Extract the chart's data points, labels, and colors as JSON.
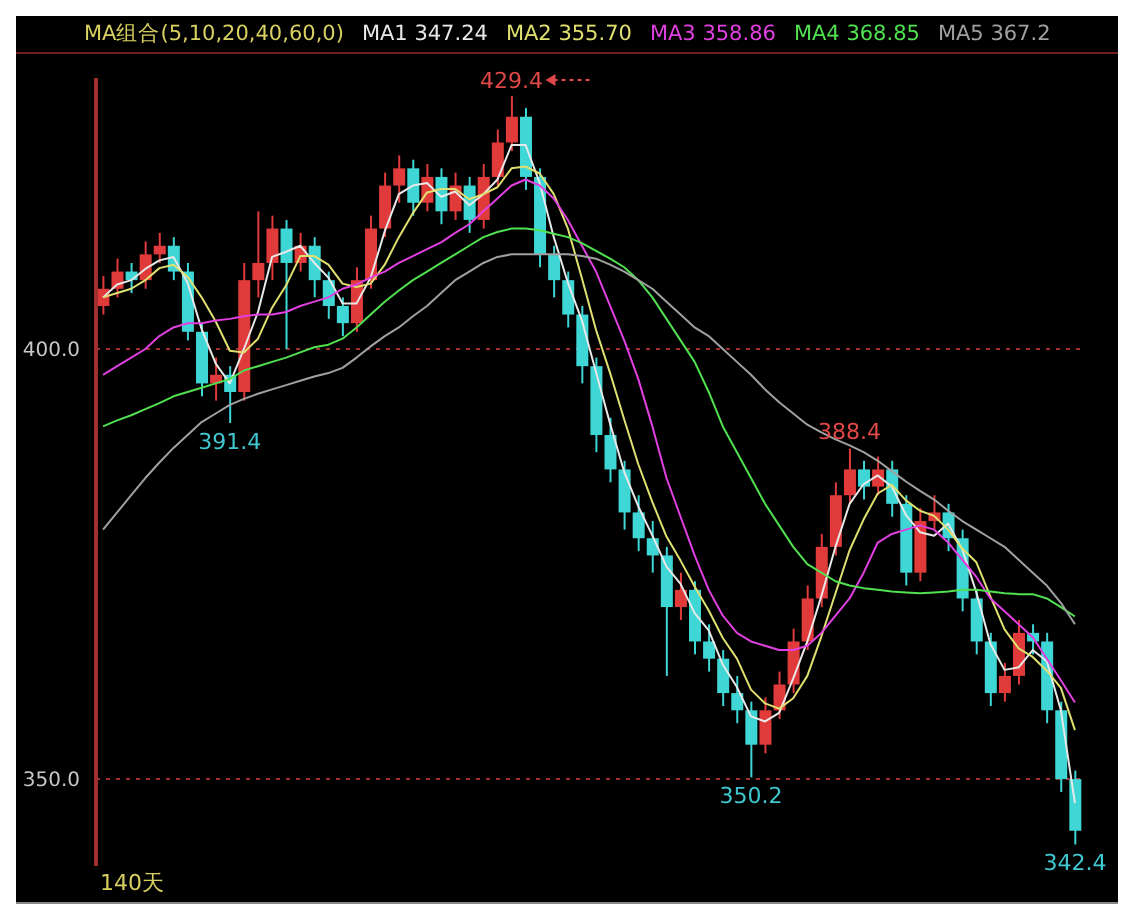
{
  "chart_data": {
    "type": "candlestick",
    "legend_title": "MA组合(5,10,20,40,60,0)",
    "legend": "top",
    "marker": "none",
    "grid": "y",
    "tick_labels": "y",
    "categories": [
      null,
      null,
      null,
      null,
      null,
      null,
      null,
      null,
      null,
      null,
      null,
      null,
      null,
      null,
      null,
      null,
      null,
      null,
      null,
      null,
      null,
      null,
      null,
      null,
      null,
      null,
      null,
      null,
      null,
      null,
      null,
      null,
      null,
      null,
      null,
      null,
      null,
      null,
      null,
      null,
      null,
      null,
      null,
      null,
      null,
      null,
      null,
      null,
      null,
      null,
      null,
      null,
      null,
      null,
      null,
      null,
      null,
      null,
      null,
      null,
      null,
      null,
      null,
      null,
      null,
      null,
      null,
      null,
      null,
      null
    ],
    "ohlc": [
      [
        405,
        408.5,
        404,
        407
      ],
      [
        407,
        410.5,
        406,
        409
      ],
      [
        409,
        410,
        406.5,
        408
      ],
      [
        408,
        412.5,
        407,
        411
      ],
      [
        411,
        413.5,
        410,
        412
      ],
      [
        412,
        413,
        408,
        409
      ],
      [
        409,
        410,
        401,
        402
      ],
      [
        402,
        403,
        394.5,
        396
      ],
      [
        396,
        399,
        394,
        397
      ],
      [
        397,
        398,
        391.4,
        395
      ],
      [
        395,
        410,
        394,
        408
      ],
      [
        408,
        416,
        406,
        410
      ],
      [
        410,
        415.5,
        408,
        414
      ],
      [
        414,
        415,
        400,
        410
      ],
      [
        410,
        413.5,
        409,
        412
      ],
      [
        412,
        413,
        406,
        408
      ],
      [
        408,
        409,
        403.5,
        405
      ],
      [
        405,
        406,
        401.5,
        403
      ],
      [
        403,
        409.5,
        402,
        408
      ],
      [
        408,
        415.5,
        407,
        414
      ],
      [
        414,
        420.5,
        413,
        419
      ],
      [
        419,
        422.5,
        417,
        421
      ],
      [
        421,
        422,
        415.5,
        417
      ],
      [
        417,
        421.5,
        416,
        420
      ],
      [
        420,
        421,
        414.5,
        416
      ],
      [
        416,
        420.5,
        415,
        419
      ],
      [
        419,
        420,
        413.5,
        415
      ],
      [
        415,
        421.5,
        414,
        420
      ],
      [
        420,
        425.5,
        419,
        424
      ],
      [
        424,
        429.4,
        423,
        427
      ],
      [
        427,
        428,
        418.5,
        420
      ],
      [
        420,
        421,
        409.5,
        411
      ],
      [
        411,
        412,
        406,
        408
      ],
      [
        408,
        409,
        402.5,
        404
      ],
      [
        404,
        405,
        396,
        398
      ],
      [
        398,
        399,
        388,
        390
      ],
      [
        390,
        392,
        384.5,
        386
      ],
      [
        386,
        387,
        379,
        381
      ],
      [
        381,
        383,
        376.5,
        378
      ],
      [
        378,
        380,
        374,
        376
      ],
      [
        376,
        377,
        362,
        370
      ],
      [
        370,
        374,
        368.5,
        372
      ],
      [
        372,
        373,
        364.5,
        366
      ],
      [
        366,
        368,
        362.5,
        364
      ],
      [
        364,
        365,
        358.5,
        360
      ],
      [
        360,
        362,
        356.5,
        358
      ],
      [
        358,
        359,
        350.2,
        354
      ],
      [
        354,
        359.5,
        353,
        358
      ],
      [
        358,
        362.5,
        357,
        361
      ],
      [
        361,
        367.5,
        360,
        366
      ],
      [
        366,
        372.5,
        365,
        371
      ],
      [
        371,
        378.5,
        370,
        377
      ],
      [
        377,
        384.5,
        376,
        383
      ],
      [
        383,
        388.4,
        382,
        386
      ],
      [
        386,
        387,
        382.5,
        384
      ],
      [
        384,
        387.5,
        383,
        386
      ],
      [
        386,
        387,
        380.5,
        382
      ],
      [
        382,
        383,
        372.5,
        374
      ],
      [
        374,
        381.5,
        373,
        380
      ],
      [
        380,
        383,
        379,
        381
      ],
      [
        381,
        382,
        376.5,
        378
      ],
      [
        378,
        379,
        369.5,
        371
      ],
      [
        371,
        372,
        364.5,
        366
      ],
      [
        366,
        367,
        358.5,
        360
      ],
      [
        360,
        363.5,
        359,
        362
      ],
      [
        362,
        368.5,
        361,
        367
      ],
      [
        367,
        368,
        364.5,
        366
      ],
      [
        366,
        367,
        356.5,
        358
      ],
      [
        358,
        359,
        348.5,
        350
      ],
      [
        350,
        351,
        342.4,
        344
      ]
    ],
    "colors": [
      "#e03a3a",
      "#e03a3a",
      "#3fd6d6",
      "#e03a3a",
      "#e03a3a",
      "#3fd6d6",
      "#3fd6d6",
      "#3fd6d6",
      "#e03a3a",
      "#3fd6d6",
      "#e03a3a",
      "#e03a3a",
      "#e03a3a",
      "#3fd6d6",
      "#e03a3a",
      "#3fd6d6",
      "#3fd6d6",
      "#3fd6d6",
      "#e03a3a",
      "#e03a3a",
      "#e03a3a",
      "#e03a3a",
      "#3fd6d6",
      "#e03a3a",
      "#3fd6d6",
      "#e03a3a",
      "#3fd6d6",
      "#e03a3a",
      "#e03a3a",
      "#e03a3a",
      "#3fd6d6",
      "#3fd6d6",
      "#3fd6d6",
      "#3fd6d6",
      "#3fd6d6",
      "#3fd6d6",
      "#3fd6d6",
      "#3fd6d6",
      "#3fd6d6",
      "#3fd6d6",
      "#3fd6d6",
      "#e03a3a",
      "#3fd6d6",
      "#3fd6d6",
      "#3fd6d6",
      "#3fd6d6",
      "#3fd6d6",
      "#e03a3a",
      "#e03a3a",
      "#e03a3a",
      "#e03a3a",
      "#e03a3a",
      "#e03a3a",
      "#e03a3a",
      "#3fd6d6",
      "#e03a3a",
      "#3fd6d6",
      "#3fd6d6",
      "#e03a3a",
      "#e03a3a",
      "#3fd6d6",
      "#3fd6d6",
      "#3fd6d6",
      "#3fd6d6",
      "#e03a3a",
      "#e03a3a",
      "#3fd6d6",
      "#3fd6d6",
      "#3fd6d6",
      "#3fd6d6"
    ],
    "series": [
      {
        "type": "line",
        "name": "MA1 347.24",
        "color": "#e8e8e8",
        "values": [
          406,
          407.5,
          408,
          409.3,
          410.3,
          410.7,
          407.7,
          402.3,
          398.3,
          396,
          400,
          404.3,
          410.7,
          411.3,
          412,
          410,
          408.3,
          405.3,
          405.3,
          408.3,
          413.7,
          418,
          419,
          419.3,
          417.7,
          418.3,
          416.7,
          418,
          419.7,
          423.7,
          423.7,
          419.3,
          413,
          407.7,
          403.3,
          397.3,
          391.3,
          385.7,
          381.7,
          378.3,
          374.7,
          372.7,
          369.3,
          367.3,
          363.3,
          360.7,
          357.3,
          356.7,
          357.7,
          361.7,
          366,
          371.3,
          377,
          382,
          384.3,
          385.3,
          384,
          380.7,
          378.7,
          378.3,
          379.7,
          376.7,
          371.7,
          365.7,
          362.7,
          363,
          365,
          363.7,
          358,
          347.2
        ]
      },
      {
        "type": "line",
        "name": "MA2 355.70",
        "color": "#e0e070",
        "values": [
          406,
          406.5,
          407,
          408,
          409.4,
          409.8,
          408.4,
          406,
          403.2,
          399.8,
          399.6,
          401.2,
          404.8,
          407.4,
          410.8,
          410.8,
          409.8,
          407.6,
          407.2,
          407.6,
          409.8,
          413,
          415.8,
          418.2,
          418.6,
          418.6,
          417.4,
          418,
          418.8,
          421,
          421.2,
          420.4,
          418,
          414,
          408.2,
          402.2,
          397.2,
          391.8,
          386.6,
          382.2,
          378.2,
          375.4,
          372.4,
          369.6,
          366.4,
          364,
          360.4,
          358.8,
          358.2,
          359.4,
          362,
          366.6,
          371.6,
          376.6,
          380.2,
          383.2,
          384.2,
          382.4,
          381.2,
          380.6,
          379,
          376.8,
          375.2,
          371.2,
          367.4,
          365.2,
          364.2,
          362.6,
          360.6,
          355.7
        ]
      },
      {
        "type": "line",
        "name": "MA3 358.86",
        "color": "#e040e0",
        "values": [
          397,
          398,
          399,
          400,
          401.5,
          402.5,
          403,
          403,
          403.3,
          403.5,
          403.8,
          404,
          404,
          404.3,
          405,
          405.5,
          406,
          407,
          407.5,
          408.3,
          409,
          410,
          410.8,
          411.6,
          412.4,
          413.5,
          414.5,
          416,
          417.5,
          419,
          419.7,
          419,
          417.5,
          415,
          412,
          409,
          405,
          401,
          396.5,
          391,
          385,
          380.5,
          376,
          372,
          369,
          367,
          366,
          365.5,
          365,
          365,
          365.5,
          367,
          369,
          371,
          374,
          377.5,
          378.5,
          379,
          379.5,
          379,
          377.5,
          375.5,
          373.5,
          371,
          369.5,
          368,
          366.5,
          364,
          361.5,
          358.9
        ]
      },
      {
        "type": "line",
        "name": "MA4 368.85",
        "color": "#50e050",
        "values": [
          391,
          391.7,
          392.3,
          393,
          393.7,
          394.5,
          395,
          395.5,
          396,
          396.5,
          397.5,
          398,
          398.5,
          399,
          399.6,
          400.2,
          400.5,
          401.2,
          402.5,
          404,
          405.5,
          406.8,
          408,
          409,
          410,
          411,
          412,
          413,
          413.6,
          414,
          414,
          413.8,
          413.4,
          413,
          412.3,
          411.4,
          410.5,
          409.5,
          408,
          406,
          403.5,
          401,
          398.5,
          395,
          391,
          388,
          385,
          382,
          379.5,
          377,
          375,
          374,
          373,
          372.5,
          372.2,
          372,
          371.8,
          371.7,
          371.6,
          371.7,
          371.8,
          372,
          372,
          371.8,
          371.6,
          371.5,
          371.5,
          371,
          370,
          368.9
        ]
      },
      {
        "type": "line",
        "name": "MA5 367.2",
        "color": "#a0a0a0",
        "values": [
          379,
          381,
          383,
          385,
          386.8,
          388.5,
          390,
          391.5,
          392.5,
          393.5,
          394.2,
          394.8,
          395.3,
          395.8,
          396.3,
          396.8,
          397.2,
          397.8,
          399,
          400.3,
          401.5,
          402.5,
          403.8,
          405,
          406.5,
          408,
          409,
          410,
          410.7,
          411,
          411,
          411,
          411,
          411,
          410.8,
          410.5,
          409.8,
          409,
          408,
          407,
          405.5,
          404,
          402.5,
          401.5,
          400,
          398.5,
          397,
          395.3,
          393.8,
          392.5,
          391.2,
          390.3,
          389.5,
          388.8,
          388,
          387,
          385.8,
          384.6,
          383.5,
          382.5,
          381.2,
          380,
          379,
          378,
          377,
          375.5,
          374,
          372.5,
          370.5,
          368
        ]
      }
    ],
    "ylim": [
      339.9,
      431.5
    ],
    "yticks": [
      {
        "value": 350,
        "label": "350.0"
      },
      {
        "value": 400,
        "label": "400.0"
      }
    ],
    "annotations": [
      {
        "text": "429.4",
        "y": 429.4
      },
      {
        "text": "391.4",
        "y": 391.4
      },
      {
        "text": "388.4",
        "y": 388.4
      },
      {
        "text": "350.2",
        "y": 350.2
      },
      {
        "text": "342.4",
        "y": 342.4
      },
      "140天"
    ]
  }
}
